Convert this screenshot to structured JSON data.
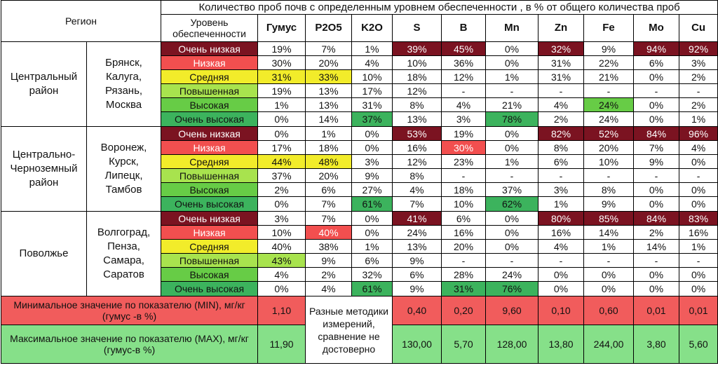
{
  "header": {
    "region_label": "Регион",
    "title": "Количество проб почв с определенным уровнем обеспеченности , в % от общего количества проб",
    "level_label": "Уровень обеспеченности",
    "elements": [
      "Гумус",
      "P2O5",
      "K2O",
      "S",
      "B",
      "Mn",
      "Zn",
      "Fe",
      "Mo",
      "Cu"
    ]
  },
  "levels": [
    "Очень низкая",
    "Низкая",
    "Средняя",
    "Повышенная",
    "Высокая",
    "Очень высокая"
  ],
  "regions": [
    {
      "name": "Центральный район",
      "cities": "Брянск, Калуга, Рязань, Москва",
      "rows": [
        [
          "19%",
          "7%",
          "1%",
          "39%",
          "45%",
          "0%",
          "32%",
          "9%",
          "94%",
          "92%"
        ],
        [
          "30%",
          "20%",
          "4%",
          "10%",
          "36%",
          "0%",
          "31%",
          "22%",
          "6%",
          "3%"
        ],
        [
          "31%",
          "33%",
          "10%",
          "18%",
          "12%",
          "1%",
          "31%",
          "21%",
          "0%",
          "2%"
        ],
        [
          "19%",
          "13%",
          "17%",
          "12%",
          "-",
          "-",
          "-",
          "-",
          "-",
          "-"
        ],
        [
          "1%",
          "13%",
          "31%",
          "8%",
          "4%",
          "21%",
          "4%",
          "24%",
          "0%",
          "2%"
        ],
        [
          "0%",
          "14%",
          "37%",
          "13%",
          "3%",
          "78%",
          "2%",
          "24%",
          "0%",
          "1%"
        ]
      ]
    },
    {
      "name": "Центрально-Черноземный район",
      "cities": "Воронеж, Курск, Липецк, Тамбов",
      "rows": [
        [
          "0%",
          "1%",
          "0%",
          "53%",
          "19%",
          "0%",
          "82%",
          "52%",
          "84%",
          "96%"
        ],
        [
          "17%",
          "18%",
          "0%",
          "16%",
          "30%",
          "0%",
          "8%",
          "20%",
          "7%",
          "4%"
        ],
        [
          "44%",
          "48%",
          "3%",
          "12%",
          "23%",
          "1%",
          "6%",
          "10%",
          "9%",
          "0%"
        ],
        [
          "37%",
          "20%",
          "9%",
          "8%",
          "-",
          "-",
          "-",
          "-",
          "-",
          "-"
        ],
        [
          "2%",
          "6%",
          "27%",
          "4%",
          "18%",
          "37%",
          "3%",
          "8%",
          "0%",
          "0%"
        ],
        [
          "0%",
          "7%",
          "61%",
          "7%",
          "10%",
          "62%",
          "1%",
          "9%",
          "0%",
          "0%"
        ]
      ]
    },
    {
      "name": "Поволжье",
      "cities": "Волгоград, Пенза, Самара, Саратов",
      "rows": [
        [
          "3%",
          "7%",
          "0%",
          "41%",
          "6%",
          "0%",
          "80%",
          "85%",
          "84%",
          "83%"
        ],
        [
          "10%",
          "40%",
          "0%",
          "24%",
          "16%",
          "0%",
          "16%",
          "14%",
          "2%",
          "16%"
        ],
        [
          "40%",
          "38%",
          "1%",
          "13%",
          "20%",
          "0%",
          "4%",
          "1%",
          "14%",
          "1%"
        ],
        [
          "43%",
          "9%",
          "6%",
          "9%",
          "-",
          "-",
          "-",
          "-",
          "-",
          "-"
        ],
        [
          "4%",
          "2%",
          "32%",
          "6%",
          "28%",
          "24%",
          "0%",
          "0%",
          "0%",
          "0%"
        ],
        [
          "0%",
          "4%",
          "61%",
          "9%",
          "31%",
          "76%",
          "0%",
          "0%",
          "0%",
          "0%"
        ]
      ]
    }
  ],
  "min_row": {
    "label": "Минимальное значение по показателю (MIN), мг/кг (гумус -в %)",
    "humus": "1,10",
    "note": "Разные методики измерений, сравнение не достоверно",
    "values": [
      "0,40",
      "0,20",
      "9,60",
      "0,10",
      "0,60",
      "0,01",
      "0,01"
    ]
  },
  "max_row": {
    "label": "Максимальное значение по показателю (MAX), мг/кг (гумус-в %)",
    "humus": "11,90",
    "values": [
      "130,00",
      "5,70",
      "128,00",
      "13,80",
      "244,00",
      "3,80",
      "5,60"
    ]
  },
  "colors": {
    "very_low": "#7b1321",
    "low": "#f24f4f",
    "medium": "#f2ec2a",
    "elevated": "#a8e34e",
    "high": "#67cc46",
    "very_high": "#3cb35d",
    "min_row": "#f15c5c",
    "max_row": "#86e089"
  }
}
